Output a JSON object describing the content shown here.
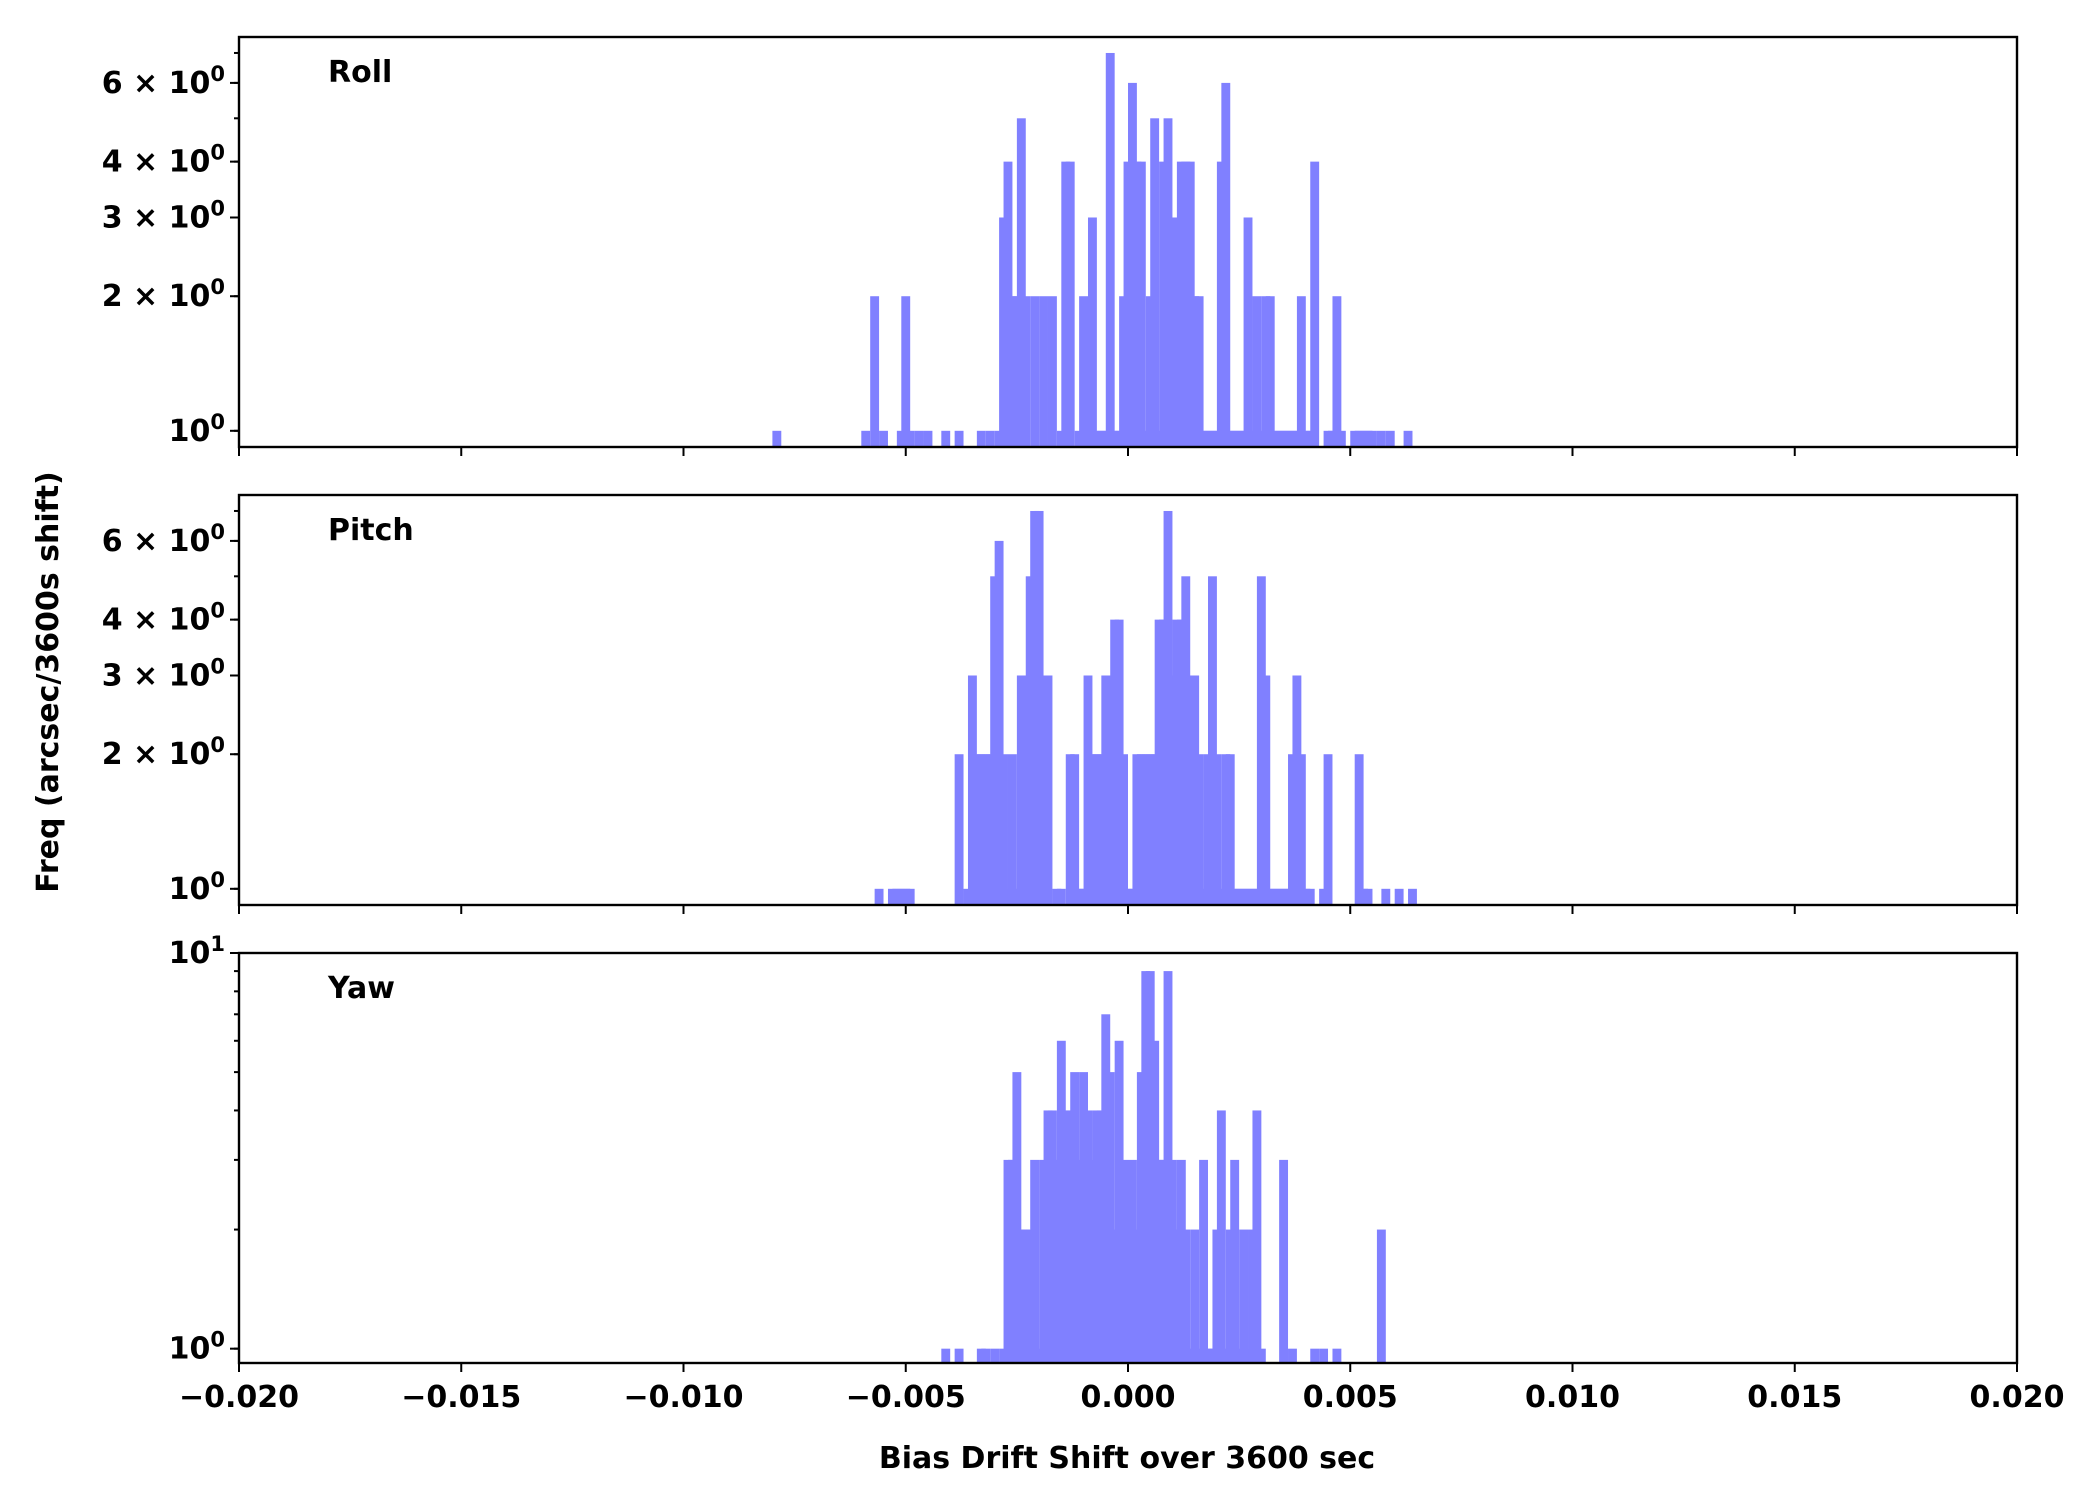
{
  "chart_data": {
    "type": "histogram",
    "xlabel": "Bias Drift Shift over 3600 sec",
    "ylabel": "Freq (arcsec/3600s shift)",
    "xlim": [
      -0.02,
      0.02
    ],
    "x_ticks": [
      "−0.020",
      "−0.015",
      "−0.010",
      "−0.005",
      "0.000",
      "0.005",
      "0.010",
      "0.015",
      "0.020"
    ],
    "x_tick_values": [
      -0.02,
      -0.015,
      -0.01,
      -0.005,
      0,
      0.005,
      0.01,
      0.015,
      0.02
    ],
    "y_scale": "log",
    "bar_color": "#8080ff",
    "bin_width": 0.0002,
    "panels": [
      {
        "name": "Roll",
        "ylim": [
          0.92,
          7.6
        ],
        "y_ticks": [
          {
            "value": 1,
            "base": "10",
            "exp": "0"
          },
          {
            "value": 2,
            "base": "2 × 10",
            "exp": "0"
          },
          {
            "value": 3,
            "base": "3 × 10",
            "exp": "0"
          },
          {
            "value": 4,
            "base": "4 × 10",
            "exp": "0"
          },
          {
            "value": 6,
            "base": "6 × 10",
            "exp": "0"
          }
        ],
        "bins": [
          [
            -0.008,
            1
          ],
          [
            -0.006,
            1
          ],
          [
            -0.0058,
            2
          ],
          [
            -0.0056,
            1
          ],
          [
            -0.0052,
            1
          ],
          [
            -0.0051,
            2
          ],
          [
            -0.005,
            1
          ],
          [
            -0.0048,
            1
          ],
          [
            -0.0046,
            1
          ],
          [
            -0.0042,
            1
          ],
          [
            -0.0039,
            1
          ],
          [
            -0.0034,
            1
          ],
          [
            -0.0032,
            1
          ],
          [
            -0.003,
            1
          ],
          [
            -0.0029,
            3
          ],
          [
            -0.0028,
            4
          ],
          [
            -0.0027,
            2
          ],
          [
            -0.0026,
            2
          ],
          [
            -0.0025,
            5
          ],
          [
            -0.0024,
            2
          ],
          [
            -0.0022,
            2
          ],
          [
            -0.002,
            2
          ],
          [
            -0.0018,
            2
          ],
          [
            -0.0016,
            1
          ],
          [
            -0.0015,
            4
          ],
          [
            -0.0014,
            4
          ],
          [
            -0.0012,
            1
          ],
          [
            -0.0011,
            2
          ],
          [
            -0.001,
            1
          ],
          [
            -0.0009,
            3
          ],
          [
            -0.0008,
            1
          ],
          [
            -0.0007,
            1
          ],
          [
            -0.0006,
            1
          ],
          [
            -0.0005,
            7
          ],
          [
            -0.0004,
            1
          ],
          [
            -0.0003,
            1
          ],
          [
            -0.0002,
            2
          ],
          [
            -0.0001,
            4
          ],
          [
            0.0,
            6
          ],
          [
            0.0001,
            4
          ],
          [
            0.0002,
            4
          ],
          [
            0.0003,
            1
          ],
          [
            0.0004,
            2
          ],
          [
            0.0005,
            5
          ],
          [
            0.0006,
            1
          ],
          [
            0.0007,
            4
          ],
          [
            0.0008,
            5
          ],
          [
            0.0009,
            3
          ],
          [
            0.001,
            3
          ],
          [
            0.0011,
            4
          ],
          [
            0.0012,
            4
          ],
          [
            0.0013,
            4
          ],
          [
            0.0014,
            2
          ],
          [
            0.0015,
            2
          ],
          [
            0.0016,
            1
          ],
          [
            0.0017,
            1
          ],
          [
            0.0018,
            1
          ],
          [
            0.0019,
            1
          ],
          [
            0.002,
            4
          ],
          [
            0.0021,
            6
          ],
          [
            0.0022,
            1
          ],
          [
            0.0023,
            1
          ],
          [
            0.0024,
            1
          ],
          [
            0.0025,
            1
          ],
          [
            0.0026,
            3
          ],
          [
            0.0027,
            1
          ],
          [
            0.0028,
            2
          ],
          [
            0.0029,
            1
          ],
          [
            0.003,
            2
          ],
          [
            0.0031,
            2
          ],
          [
            0.0032,
            1
          ],
          [
            0.0033,
            1
          ],
          [
            0.0034,
            1
          ],
          [
            0.0035,
            1
          ],
          [
            0.0036,
            1
          ],
          [
            0.0037,
            1
          ],
          [
            0.0038,
            2
          ],
          [
            0.0039,
            1
          ],
          [
            0.004,
            1
          ],
          [
            0.0041,
            4
          ],
          [
            0.0044,
            1
          ],
          [
            0.0045,
            1
          ],
          [
            0.0046,
            2
          ],
          [
            0.0047,
            1
          ],
          [
            0.005,
            1
          ],
          [
            0.0051,
            1
          ],
          [
            0.0052,
            1
          ],
          [
            0.0053,
            1
          ],
          [
            0.0054,
            1
          ],
          [
            0.0056,
            1
          ],
          [
            0.0058,
            1
          ],
          [
            0.0062,
            1
          ]
        ]
      },
      {
        "name": "Pitch",
        "ylim": [
          0.92,
          7.6
        ],
        "y_ticks": [
          {
            "value": 1,
            "base": "10",
            "exp": "0"
          },
          {
            "value": 2,
            "base": "2 × 10",
            "exp": "0"
          },
          {
            "value": 3,
            "base": "3 × 10",
            "exp": "0"
          },
          {
            "value": 4,
            "base": "4 × 10",
            "exp": "0"
          },
          {
            "value": 6,
            "base": "6 × 10",
            "exp": "0"
          }
        ],
        "bins": [
          [
            -0.0057,
            1
          ],
          [
            -0.0054,
            1
          ],
          [
            -0.0053,
            1
          ],
          [
            -0.0052,
            1
          ],
          [
            -0.0051,
            1
          ],
          [
            -0.005,
            1
          ],
          [
            -0.0039,
            2
          ],
          [
            -0.0037,
            1
          ],
          [
            -0.0036,
            3
          ],
          [
            -0.0035,
            2
          ],
          [
            -0.0034,
            2
          ],
          [
            -0.0033,
            2
          ],
          [
            -0.0032,
            2
          ],
          [
            -0.0031,
            5
          ],
          [
            -0.003,
            6
          ],
          [
            -0.0029,
            2
          ],
          [
            -0.0028,
            1
          ],
          [
            -0.0027,
            2
          ],
          [
            -0.0026,
            1
          ],
          [
            -0.0025,
            3
          ],
          [
            -0.0024,
            3
          ],
          [
            -0.0023,
            5
          ],
          [
            -0.0022,
            7
          ],
          [
            -0.0021,
            7
          ],
          [
            -0.002,
            3
          ],
          [
            -0.0019,
            3
          ],
          [
            -0.0017,
            1
          ],
          [
            -0.0016,
            1
          ],
          [
            -0.0014,
            2
          ],
          [
            -0.0013,
            2
          ],
          [
            -0.0012,
            1
          ],
          [
            -0.0011,
            1
          ],
          [
            -0.001,
            3
          ],
          [
            -0.0009,
            2
          ],
          [
            -0.0008,
            2
          ],
          [
            -0.0007,
            2
          ],
          [
            -0.0006,
            3
          ],
          [
            -0.0005,
            3
          ],
          [
            -0.0004,
            4
          ],
          [
            -0.0003,
            4
          ],
          [
            -0.0002,
            2
          ],
          [
            -0.0001,
            1
          ],
          [
            0.0,
            1
          ],
          [
            0.0001,
            2
          ],
          [
            0.0002,
            2
          ],
          [
            0.0003,
            2
          ],
          [
            0.0004,
            2
          ],
          [
            0.0005,
            2
          ],
          [
            0.0006,
            4
          ],
          [
            0.0007,
            4
          ],
          [
            0.0008,
            7
          ],
          [
            0.0009,
            3
          ],
          [
            0.001,
            4
          ],
          [
            0.0011,
            4
          ],
          [
            0.0012,
            5
          ],
          [
            0.0013,
            3
          ],
          [
            0.0014,
            3
          ],
          [
            0.0015,
            2
          ],
          [
            0.0016,
            1
          ],
          [
            0.0017,
            2
          ],
          [
            0.0018,
            5
          ],
          [
            0.0019,
            2
          ],
          [
            0.002,
            1
          ],
          [
            0.0021,
            2
          ],
          [
            0.0022,
            2
          ],
          [
            0.0023,
            1
          ],
          [
            0.0024,
            1
          ],
          [
            0.0025,
            1
          ],
          [
            0.0026,
            1
          ],
          [
            0.0027,
            1
          ],
          [
            0.0028,
            1
          ],
          [
            0.0029,
            5
          ],
          [
            0.003,
            3
          ],
          [
            0.0031,
            1
          ],
          [
            0.0032,
            1
          ],
          [
            0.0033,
            1
          ],
          [
            0.0034,
            1
          ],
          [
            0.0035,
            1
          ],
          [
            0.0036,
            2
          ],
          [
            0.0037,
            3
          ],
          [
            0.0038,
            2
          ],
          [
            0.0039,
            1
          ],
          [
            0.004,
            1
          ],
          [
            0.0043,
            1
          ],
          [
            0.0044,
            2
          ],
          [
            0.0051,
            2
          ],
          [
            0.0052,
            1
          ],
          [
            0.0053,
            1
          ],
          [
            0.0057,
            1
          ],
          [
            0.006,
            1
          ],
          [
            0.0063,
            1
          ]
        ]
      },
      {
        "name": "Yaw",
        "ylim": [
          0.92,
          10.0
        ],
        "y_ticks": [
          {
            "value": 1,
            "base": "10",
            "exp": "0"
          },
          {
            "value": 10,
            "base": "10",
            "exp": "1"
          }
        ],
        "bins": [
          [
            -0.0042,
            1
          ],
          [
            -0.0039,
            1
          ],
          [
            -0.0034,
            1
          ],
          [
            -0.0033,
            1
          ],
          [
            -0.0031,
            1
          ],
          [
            -0.0029,
            1
          ],
          [
            -0.0028,
            3
          ],
          [
            -0.0027,
            3
          ],
          [
            -0.0026,
            5
          ],
          [
            -0.0025,
            2
          ],
          [
            -0.0024,
            2
          ],
          [
            -0.0023,
            2
          ],
          [
            -0.0022,
            3
          ],
          [
            -0.0021,
            1
          ],
          [
            -0.002,
            3
          ],
          [
            -0.0019,
            4
          ],
          [
            -0.0018,
            4
          ],
          [
            -0.0017,
            3
          ],
          [
            -0.0016,
            6
          ],
          [
            -0.0015,
            4
          ],
          [
            -0.0014,
            4
          ],
          [
            -0.0013,
            5
          ],
          [
            -0.0012,
            3
          ],
          [
            -0.0011,
            5
          ],
          [
            -0.001,
            4
          ],
          [
            -0.0009,
            3
          ],
          [
            -0.0008,
            4
          ],
          [
            -0.0007,
            4
          ],
          [
            -0.0006,
            7
          ],
          [
            -0.0005,
            5
          ],
          [
            -0.0004,
            2
          ],
          [
            -0.0003,
            6
          ],
          [
            -0.0002,
            3
          ],
          [
            -0.0001,
            1
          ],
          [
            0.0,
            3
          ],
          [
            0.0001,
            2
          ],
          [
            0.0002,
            5
          ],
          [
            0.0003,
            9
          ],
          [
            0.0004,
            9
          ],
          [
            0.0005,
            6
          ],
          [
            0.0006,
            3
          ],
          [
            0.0007,
            3
          ],
          [
            0.0008,
            9
          ],
          [
            0.0009,
            3
          ],
          [
            0.001,
            2
          ],
          [
            0.0011,
            3
          ],
          [
            0.0012,
            2
          ],
          [
            0.0013,
            1
          ],
          [
            0.0014,
            2
          ],
          [
            0.0015,
            1
          ],
          [
            0.0016,
            3
          ],
          [
            0.0017,
            1
          ],
          [
            0.0018,
            1
          ],
          [
            0.0019,
            2
          ],
          [
            0.002,
            4
          ],
          [
            0.0021,
            1
          ],
          [
            0.0022,
            2
          ],
          [
            0.0023,
            3
          ],
          [
            0.0024,
            1
          ],
          [
            0.0025,
            2
          ],
          [
            0.0026,
            1
          ],
          [
            0.0027,
            2
          ],
          [
            0.0028,
            4
          ],
          [
            0.0029,
            1
          ],
          [
            0.0034,
            3
          ],
          [
            0.0036,
            1
          ],
          [
            0.0041,
            1
          ],
          [
            0.0043,
            1
          ],
          [
            0.0046,
            1
          ],
          [
            0.0056,
            2
          ]
        ]
      }
    ]
  }
}
